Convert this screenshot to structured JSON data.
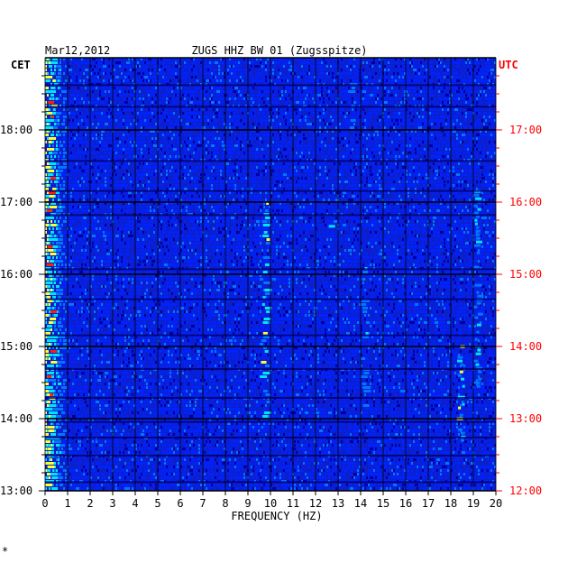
{
  "chart_data": {
    "type": "heatmap",
    "title": "ZUGS HHZ BW 01 (Zugsspitze)",
    "date": "Mar12,2012",
    "xlabel": "FREQUENCY (HZ)",
    "left_axis_label": "CET",
    "right_axis_label": "UTC",
    "xlim": [
      0,
      20
    ],
    "x_ticks": [
      0,
      1,
      2,
      3,
      4,
      5,
      6,
      7,
      8,
      9,
      10,
      11,
      12,
      13,
      14,
      15,
      16,
      17,
      18,
      19,
      20
    ],
    "y_ticks_cet": [
      "18:00",
      "17:00",
      "16:00",
      "15:00",
      "14:00",
      "13:00"
    ],
    "y_ticks_utc": [
      "17:00",
      "16:00",
      "15:00",
      "14:00",
      "13:00",
      "12:00"
    ],
    "time_range_cet": [
      "13:00",
      "18:45"
    ],
    "grid": true,
    "colors": {
      "background": "#0d1fc8",
      "grid": "#000000",
      "utc_text": "#ff0000",
      "text": "#000000"
    },
    "colormap": [
      "#0000a0",
      "#0022ff",
      "#0077ff",
      "#00e5ff",
      "#ffff33",
      "#ff2000"
    ],
    "hot_features": [
      {
        "freq_hz": 0.3,
        "time_cet": "13:00-18:45",
        "intensity": 0.9
      },
      {
        "freq_hz": 9.8,
        "time_cet": "14:00-17:00",
        "intensity": 0.7
      },
      {
        "freq_hz": 14.2,
        "time_cet": "14:00-16:30",
        "intensity": 0.5
      },
      {
        "freq_hz": 13.7,
        "time_cet": "18:00-18:45",
        "intensity": 0.45
      },
      {
        "freq_hz": 18.5,
        "time_cet": "13:40-15:10",
        "intensity": 0.7
      },
      {
        "freq_hz": 19.2,
        "time_cet": "14:20-17:10",
        "intensity": 0.55
      },
      {
        "freq_hz": 12.8,
        "time_cet": "16:40-16:50",
        "intensity": 0.6
      }
    ],
    "footer_mark": "*"
  }
}
